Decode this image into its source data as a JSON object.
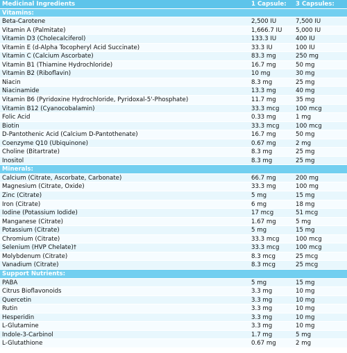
{
  "header": {
    "col1": "Medicinal Ingredients",
    "col2": "1 Capsule:",
    "col3": "3 Capsules:"
  },
  "sections": [
    {
      "title": "Vitamins:",
      "rows": [
        [
          "Beta-Carotene",
          "2,500 IU",
          "7,500 IU"
        ],
        [
          "Vitamin A (Palmitate)",
          "1,666.7 IU",
          "5,000 IU"
        ],
        [
          "Vitamin D3 (Cholecalciferol)",
          "133.3 IU",
          "400 IU"
        ],
        [
          "Vitamin E (d-Alpha Tocopheryl Acid Succinate)",
          "33.3 IU",
          "100 IU"
        ],
        [
          "Vitamin C (Calcium Ascorbate)",
          "83.3 mg",
          "250 mg"
        ],
        [
          "Vitamin B1 (Thiamine Hydrochloride)",
          "16.7 mg",
          "50 mg"
        ],
        [
          "Vitamin B2 (Riboflavin)",
          "10 mg",
          "30 mg"
        ],
        [
          "Niacin",
          "8.3 mg",
          "25 mg"
        ],
        [
          "Niacinamide",
          "13.3 mg",
          "40 mg"
        ],
        [
          "Vitamin B6 (Pyridoxine Hydrochloride, Pyridoxal-5'-Phosphate)",
          "11.7 mg",
          "35 mg"
        ],
        [
          "Vitamin B12 (Cyanocobalamin)",
          "33.3 mcg",
          "100 mcg"
        ],
        [
          "Folic Acid",
          "0.33 mg",
          "1 mg"
        ],
        [
          "Biotin",
          "33.3 mcg",
          "100 mcg"
        ],
        [
          "D-Pantothenic Acid (Calcium D-Pantothenate)",
          "16.7 mg",
          "50 mg"
        ],
        [
          "Coenzyme Q10 (Ubiquinone)",
          "0.67 mg",
          "2 mg"
        ],
        [
          "Choline (Bitartrate)",
          "8.3 mg",
          "25 mg"
        ],
        [
          "Inositol",
          "8.3 mg",
          "25 mg"
        ]
      ]
    },
    {
      "title": "Minerals:",
      "rows": [
        [
          "Calcium (Citrate, Ascorbate, Carbonate)",
          "66.7 mg",
          "200 mg"
        ],
        [
          "Magnesium (Citrate, Oxide)",
          "33.3 mg",
          "100 mg"
        ],
        [
          "Zinc (Citrate)",
          "5 mg",
          "15 mg"
        ],
        [
          "Iron (Citrate)",
          "6 mg",
          "18 mg"
        ],
        [
          "Iodine (Potassium Iodide)",
          "17 mcg",
          "51 mcg"
        ],
        [
          "Manganese (Citrate)",
          "1.67 mg",
          "5 mg"
        ],
        [
          "Potassium (Citrate)",
          "5 mg",
          "15 mg"
        ],
        [
          "Chromium (Citrate)",
          "33.3 mcg",
          "100 mcg"
        ],
        [
          "Selenium (HVP Chelate)†",
          "33.3 mcg",
          "100 mcg"
        ],
        [
          "Molybdenum (Citrate)",
          "8.3 mcg",
          "25 mcg"
        ],
        [
          "Vanadium (Citrate)",
          "8.3 mcg",
          "25 mcg"
        ]
      ]
    },
    {
      "title": "Support Nutrients:",
      "rows": [
        [
          "PABA",
          "5 mg",
          "15 mg"
        ],
        [
          "Citrus Bioflavonoids",
          "3.3 mg",
          "10 mg"
        ],
        [
          "Quercetin",
          "3.3 mg",
          "10 mg"
        ],
        [
          "Rutin",
          "3.3 mg",
          "10 mg"
        ],
        [
          "Hesperidin",
          "3.3 mg",
          "10 mg"
        ],
        [
          "L-Glutamine",
          "3.3 mg",
          "10 mg"
        ],
        [
          "Indole-3-Carbinol",
          "1.7 mg",
          "5 mg"
        ],
        [
          "L-Glutathione",
          "0.67 mg",
          "2 mg"
        ]
      ]
    }
  ]
}
